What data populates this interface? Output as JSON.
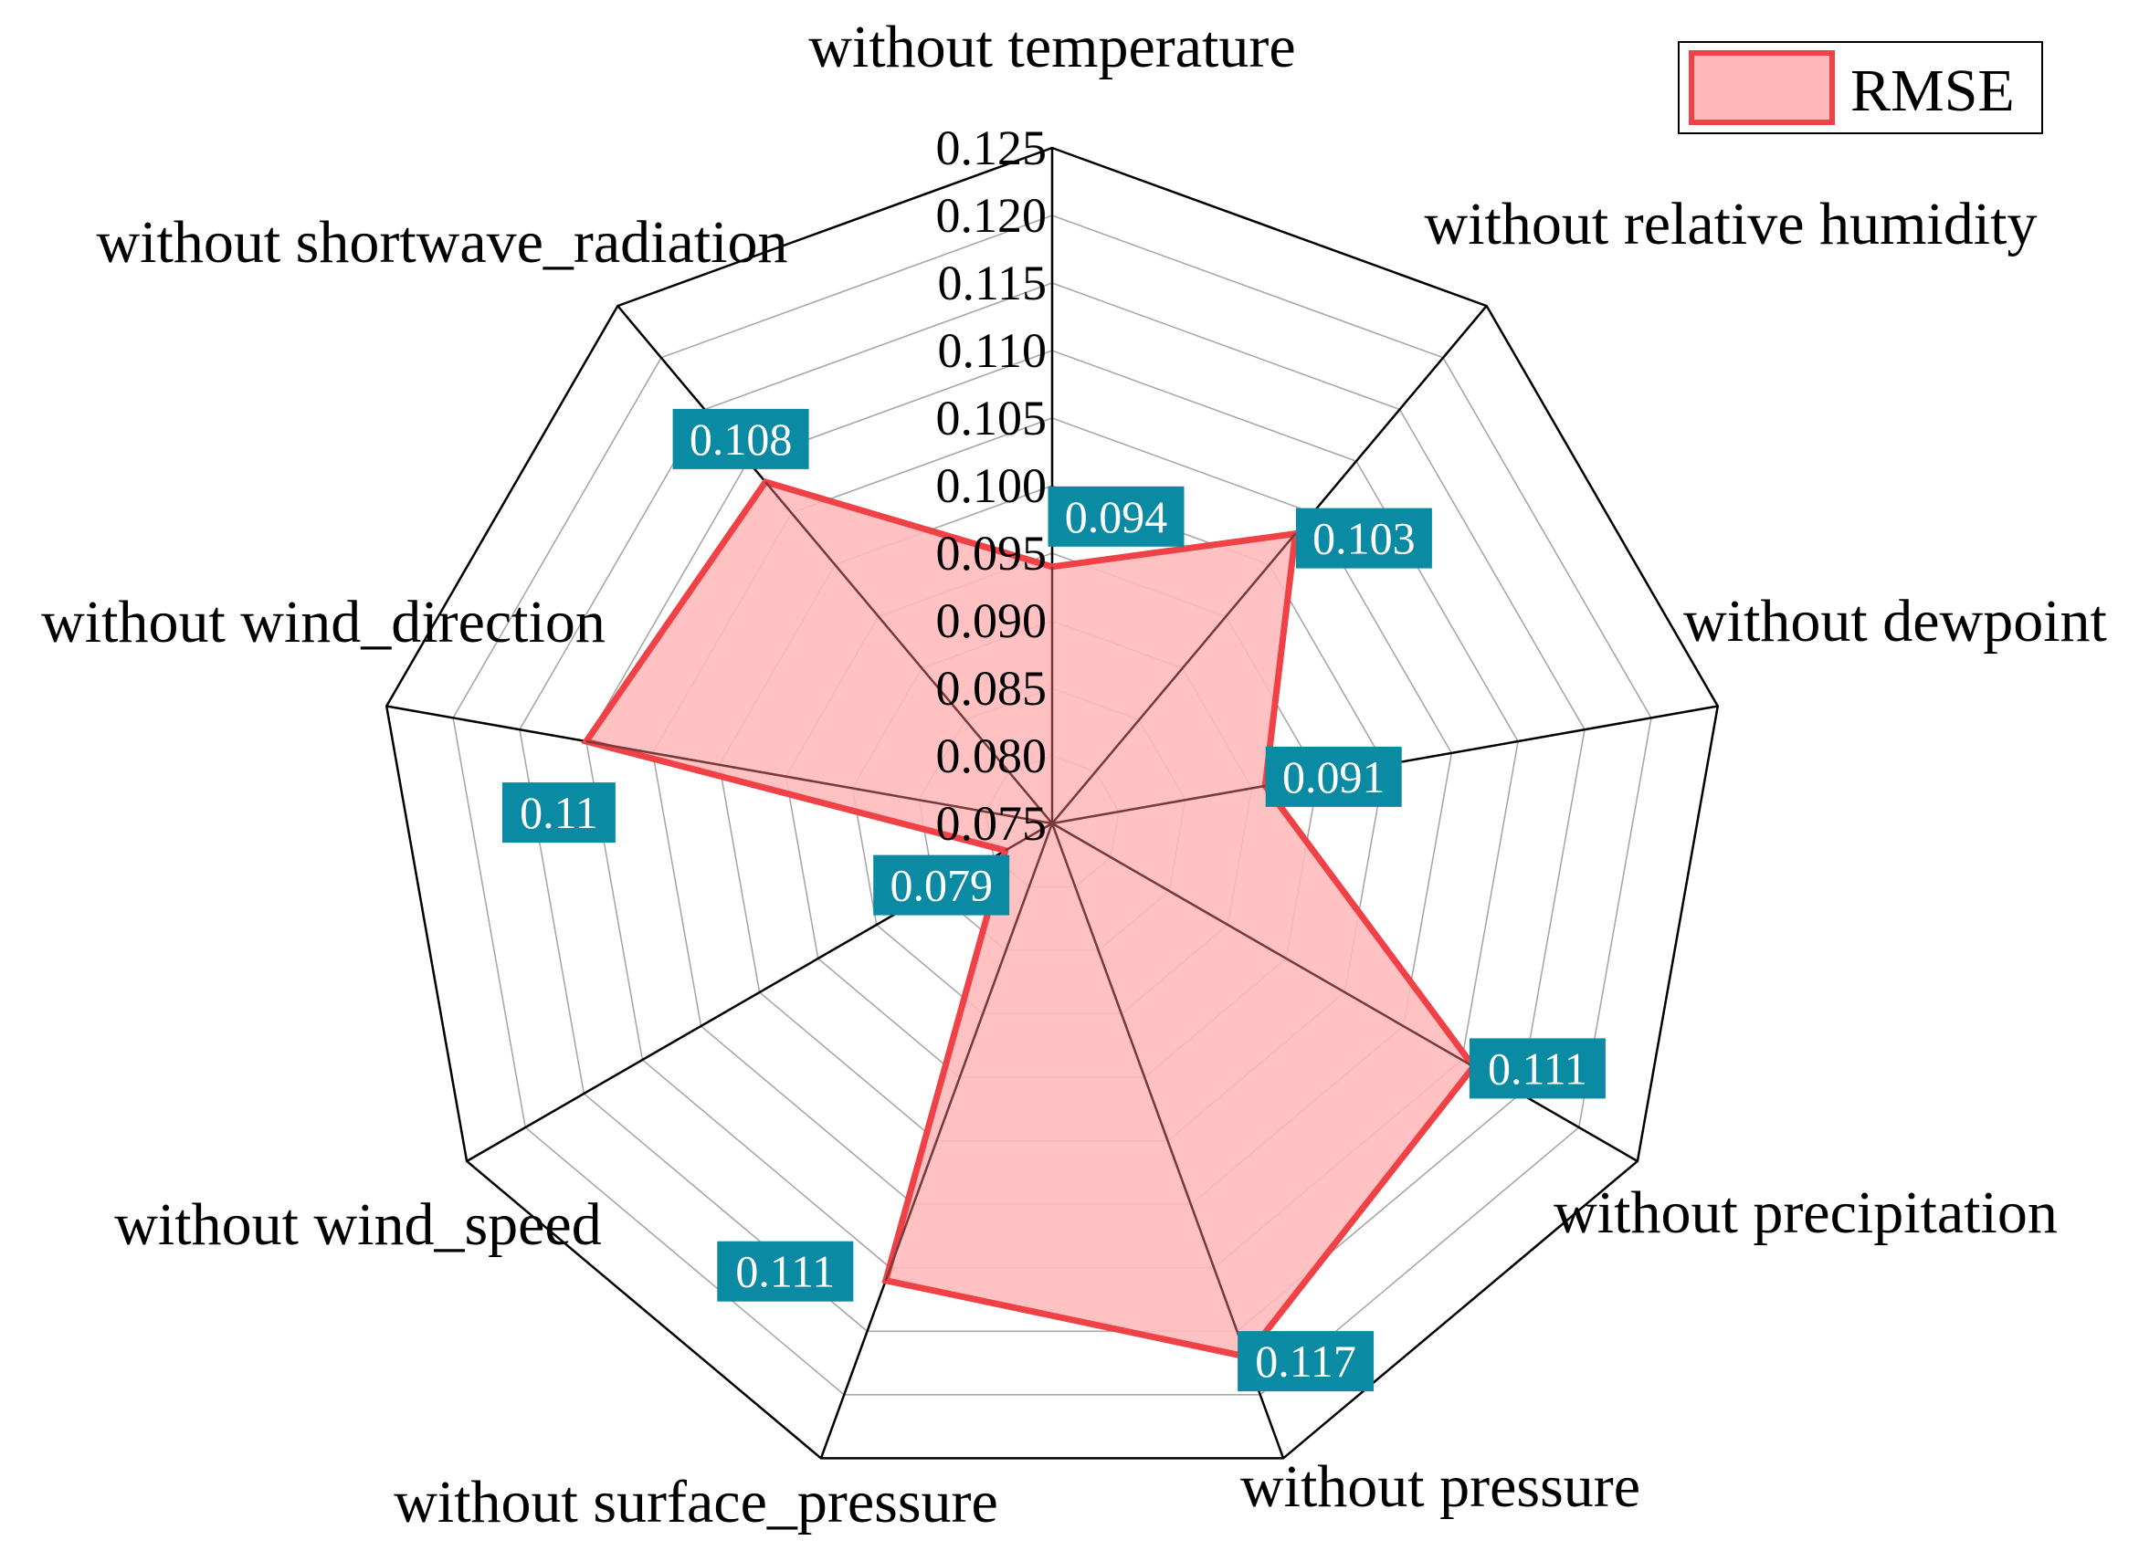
{
  "chart_data": {
    "type": "radar",
    "categories": [
      "without temperature",
      "without relative humidity",
      "without dewpoint",
      "without precipitation",
      "without pressure",
      "without surface_pressure",
      "without wind_speed",
      "without wind_direction",
      "without shortwave_radiation"
    ],
    "series": [
      {
        "name": "RMSE",
        "values": [
          0.094,
          0.103,
          0.091,
          0.111,
          0.117,
          0.111,
          0.079,
          0.11,
          0.108
        ],
        "labels": [
          "0.094",
          "0.103",
          "0.091",
          "0.111",
          "0.117",
          "0.111",
          "0.079",
          "0.11",
          "0.108"
        ]
      }
    ],
    "rlim": [
      0.075,
      0.125
    ],
    "ticks": [
      "0.075",
      "0.080",
      "0.085",
      "0.090",
      "0.095",
      "0.100",
      "0.105",
      "0.110",
      "0.115",
      "0.120",
      "0.125"
    ],
    "grid": true,
    "legend": "top-right",
    "colors": {
      "series_stroke": "#ef4146",
      "series_fill": "#ffb8ba",
      "data_label_bg": "#0b8aa3",
      "grid": "#a8a8a8",
      "axis": "#000000"
    }
  }
}
